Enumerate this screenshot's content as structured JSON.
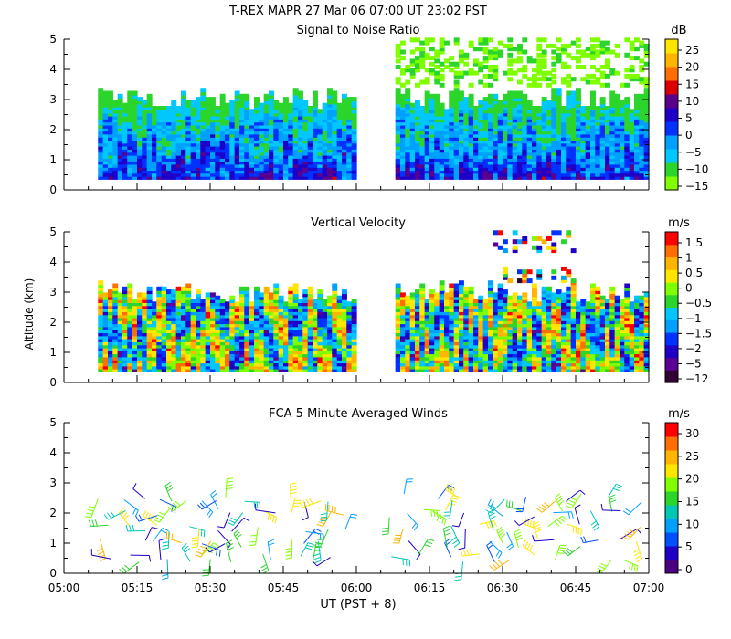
{
  "figure": {
    "title": "T-REX   MAPR 27 Mar 06   07:00 UT   23:02   PST",
    "x_axis_label": "UT  (PST + 8)",
    "y_axis_label": "Altitude (km)"
  },
  "colors": {
    "snr_scale": [
      "#7fff00",
      "#2bd52b",
      "#00c8ff",
      "#00a0ff",
      "#0032ff",
      "#1e00c8",
      "#5a008c",
      "#dc0000",
      "#ff6e00",
      "#ffb400",
      "#ffe600"
    ],
    "velocity_scale": [
      "#320032",
      "#5a0096",
      "#1e00c8",
      "#0032ff",
      "#00a0ff",
      "#00c8ff",
      "#2bd52b",
      "#7fff00",
      "#ffe600",
      "#ffb400",
      "#ff6e00",
      "#ff0000"
    ],
    "wind_scale": [
      "#4b0082",
      "#1e00c8",
      "#0050ff",
      "#00a0ff",
      "#00c8b4",
      "#2bd52b",
      "#7fff00",
      "#ffe600",
      "#ffb400",
      "#ff6e00",
      "#ff0000"
    ]
  },
  "chart_data": [
    {
      "type": "heatmap",
      "title": "Signal to Noise Ratio",
      "unit": "dB",
      "xlabel": "UT  (PST + 8)",
      "ylabel": "Altitude (km)",
      "xlim": [
        "05:00",
        "07:00"
      ],
      "ylim": [
        0,
        5
      ],
      "y_ticks": [
        "0",
        "1",
        "2",
        "3",
        "4",
        "5"
      ],
      "x_tick_labels": [
        "05:00",
        "05:15",
        "05:30",
        "05:45",
        "06:00",
        "06:15",
        "06:30",
        "06:45",
        "07:00"
      ],
      "colorbar_ticks": [
        "25",
        "20",
        "15",
        "10",
        "5",
        "0",
        "−5",
        "−10",
        "−15"
      ],
      "data_gap": [
        "06:00",
        "06:07"
      ]
    },
    {
      "type": "heatmap",
      "title": "Vertical Velocity",
      "unit": "m/s",
      "xlabel": "UT  (PST + 8)",
      "ylabel": "Altitude (km)",
      "xlim": [
        "05:00",
        "07:00"
      ],
      "ylim": [
        0,
        5
      ],
      "y_ticks": [
        "0",
        "1",
        "2",
        "3",
        "4",
        "5"
      ],
      "x_tick_labels": [
        "05:00",
        "05:15",
        "05:30",
        "05:45",
        "06:00",
        "06:15",
        "06:30",
        "06:45",
        "07:00"
      ],
      "colorbar_ticks": [
        "1.5",
        "1",
        "0.5",
        "0",
        "−0.5",
        "−1",
        "−1.5",
        "−2",
        "−5",
        "−12"
      ],
      "data_gap": [
        "06:00",
        "06:07"
      ]
    },
    {
      "type": "scatter",
      "title": "FCA 5 Minute Averaged Winds",
      "unit": "m/s",
      "xlabel": "UT  (PST + 8)",
      "ylabel": "Altitude (km)",
      "xlim": [
        "05:00",
        "07:00"
      ],
      "ylim": [
        0,
        5
      ],
      "y_ticks": [
        "0",
        "1",
        "2",
        "3",
        "4",
        "5"
      ],
      "x_tick_labels": [
        "05:00",
        "05:15",
        "05:30",
        "05:45",
        "06:00",
        "06:15",
        "06:30",
        "06:45",
        "07:00"
      ],
      "colorbar_ticks": [
        "30",
        "25",
        "20",
        "15",
        "10",
        "5",
        "0"
      ],
      "data_gap": [
        "06:00",
        "06:07"
      ]
    }
  ]
}
